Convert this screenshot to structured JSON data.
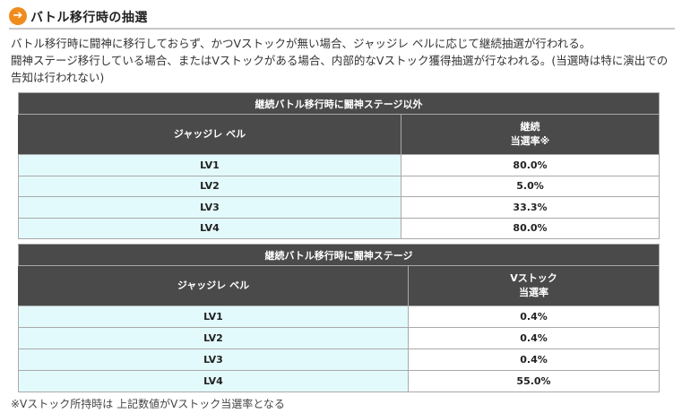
{
  "section": {
    "icon": "arrow-right-circle-icon",
    "title": "バトル移行時の抽選"
  },
  "intro": {
    "line1": "バトル移行時に闘神に移行しておらず、かつVストックが無い場合、ジャッジレ ベルに応じて継続抽選が行われる。",
    "line2": "闘神ステージ移行している場合、またはVストックがある場合、内部的なVストック獲得抽選が行なわれる。(当選時は特に演出での告知は行われない)"
  },
  "tables": [
    {
      "title": "継続バトル移行時に闘神ステージ以外",
      "col1_header": "ジャッジレ ベル",
      "col2_header_line1": "継続",
      "col2_header_line2": "当選率※",
      "rows": [
        {
          "level": "LV1",
          "rate": "80.0%"
        },
        {
          "level": "LV2",
          "rate": "5.0%"
        },
        {
          "level": "LV3",
          "rate": "33.3%"
        },
        {
          "level": "LV4",
          "rate": "80.0%"
        }
      ]
    },
    {
      "title": "継続バトル移行時に闘神ステージ",
      "col1_header": "ジャッジレ ベル",
      "col2_header_line1": "Vストック",
      "col2_header_line2": "当選率",
      "rows": [
        {
          "level": "LV1",
          "rate": "0.4%"
        },
        {
          "level": "LV2",
          "rate": "0.4%"
        },
        {
          "level": "LV3",
          "rate": "0.4%"
        },
        {
          "level": "LV4",
          "rate": "55.0%"
        }
      ]
    }
  ],
  "footnote": "※Vストック所持時は 上記数値がVストック当選率となる",
  "colors": {
    "header_bg": "#4a4a4a",
    "level_cell_bg": "#e3fafc",
    "icon_bg": "#f08c1e"
  }
}
